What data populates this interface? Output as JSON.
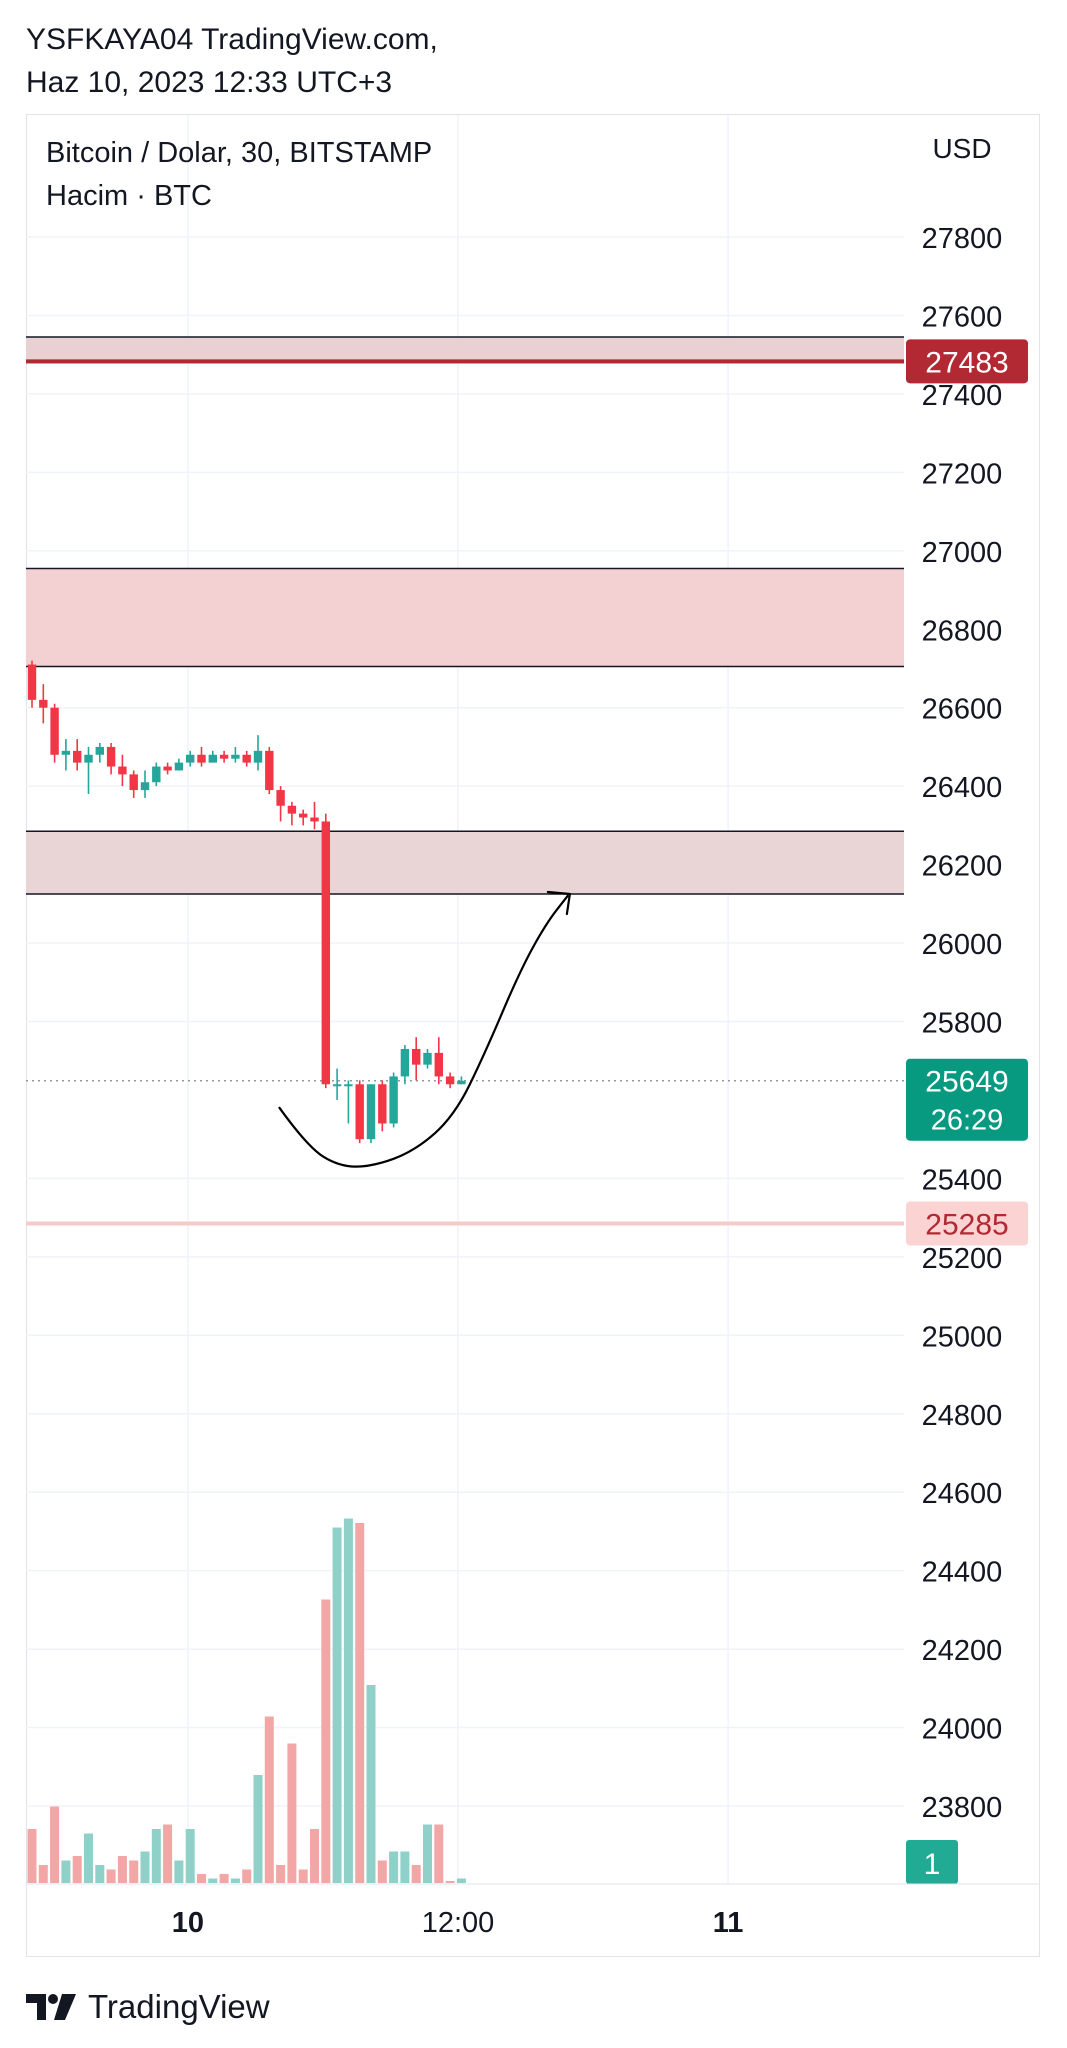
{
  "header": {
    "line1": "YSFKAYA04 TradingView.com,",
    "line2": "Haz 10, 2023 12:33 UTC+3"
  },
  "legend": {
    "symbol": "Bitcoin / Dolar, 30, BITSTAMP",
    "volume": "Hacim · BTC"
  },
  "currency": "USD",
  "brand": {
    "name": "TradingView",
    "logo_icon": "tradingview-logo-icon"
  },
  "chart_data": {
    "type": "candlestick",
    "ylim": [
      23600,
      27980
    ],
    "y_ticks": [
      27800,
      27600,
      27400,
      27200,
      27000,
      26800,
      26600,
      26400,
      26200,
      26000,
      25800,
      25400,
      25200,
      25000,
      24800,
      24600,
      24400,
      24200,
      24000,
      23800
    ],
    "x_ticks": [
      {
        "label": "10",
        "bar": 13.8,
        "bold": true
      },
      {
        "label": "12:00",
        "bar": 37.7,
        "bold": false
      },
      {
        "label": "11",
        "bar": 61.6,
        "bold": true
      }
    ],
    "grid": true,
    "colors": {
      "up": "#26a69a",
      "down": "#f23645",
      "vol_up": "#8fd0c8",
      "vol_down": "#f3a6a6"
    },
    "candles": [
      {
        "o": 26710,
        "h": 26720,
        "c": 26620,
        "l": 26600
      },
      {
        "o": 26620,
        "h": 26660,
        "c": 26600,
        "l": 26560
      },
      {
        "o": 26600,
        "h": 26610,
        "c": 26480,
        "l": 26460
      },
      {
        "o": 26480,
        "h": 26520,
        "c": 26490,
        "l": 26440
      },
      {
        "o": 26490,
        "h": 26520,
        "c": 26460,
        "l": 26440
      },
      {
        "o": 26460,
        "h": 26500,
        "c": 26480,
        "l": 26380
      },
      {
        "o": 26480,
        "h": 26510,
        "c": 26500,
        "l": 26460
      },
      {
        "o": 26500,
        "h": 26510,
        "c": 26450,
        "l": 26430
      },
      {
        "o": 26450,
        "h": 26480,
        "c": 26430,
        "l": 26400
      },
      {
        "o": 26430,
        "h": 26440,
        "c": 26390,
        "l": 26370
      },
      {
        "o": 26390,
        "h": 26440,
        "c": 26410,
        "l": 26370
      },
      {
        "o": 26410,
        "h": 26460,
        "c": 26450,
        "l": 26400
      },
      {
        "o": 26450,
        "h": 26460,
        "c": 26440,
        "l": 26430
      },
      {
        "o": 26440,
        "h": 26470,
        "c": 26460,
        "l": 26440
      },
      {
        "o": 26460,
        "h": 26490,
        "c": 26480,
        "l": 26450
      },
      {
        "o": 26480,
        "h": 26500,
        "c": 26460,
        "l": 26450
      },
      {
        "o": 26460,
        "h": 26490,
        "c": 26480,
        "l": 26460
      },
      {
        "o": 26480,
        "h": 26490,
        "c": 26470,
        "l": 26460
      },
      {
        "o": 26470,
        "h": 26500,
        "c": 26480,
        "l": 26460
      },
      {
        "o": 26480,
        "h": 26490,
        "c": 26460,
        "l": 26450
      },
      {
        "o": 26460,
        "h": 26530,
        "c": 26490,
        "l": 26440
      },
      {
        "o": 26490,
        "h": 26500,
        "c": 26390,
        "l": 26380
      },
      {
        "o": 26390,
        "h": 26400,
        "c": 26350,
        "l": 26310
      },
      {
        "o": 26350,
        "h": 26360,
        "c": 26330,
        "l": 26300
      },
      {
        "o": 26330,
        "h": 26340,
        "c": 26320,
        "l": 26300
      },
      {
        "o": 26320,
        "h": 26360,
        "c": 26310,
        "l": 26290
      },
      {
        "o": 26310,
        "h": 26330,
        "c": 25640,
        "l": 25630
      },
      {
        "o": 25640,
        "h": 25680,
        "c": 25640,
        "l": 25600
      },
      {
        "o": 25640,
        "h": 25650,
        "c": 25640,
        "l": 25540
      },
      {
        "o": 25640,
        "h": 25650,
        "c": 25500,
        "l": 25490
      },
      {
        "o": 25500,
        "h": 25640,
        "c": 25640,
        "l": 25490
      },
      {
        "o": 25640,
        "h": 25650,
        "c": 25540,
        "l": 25520
      },
      {
        "o": 25540,
        "h": 25670,
        "c": 25660,
        "l": 25530
      },
      {
        "o": 25660,
        "h": 25740,
        "c": 25730,
        "l": 25640
      },
      {
        "o": 25730,
        "h": 25760,
        "c": 25690,
        "l": 25650
      },
      {
        "o": 25690,
        "h": 25730,
        "c": 25720,
        "l": 25680
      },
      {
        "o": 25720,
        "h": 25760,
        "c": 25660,
        "l": 25640
      },
      {
        "o": 25660,
        "h": 25670,
        "c": 25640,
        "l": 25630
      },
      {
        "o": 25640,
        "h": 25660,
        "c": 25649,
        "l": 25640
      }
    ],
    "volume_rel": [
      0.12,
      0.04,
      0.17,
      0.05,
      0.06,
      0.11,
      0.04,
      0.03,
      0.06,
      0.05,
      0.07,
      0.12,
      0.13,
      0.05,
      0.12,
      0.02,
      0.01,
      0.02,
      0.01,
      0.03,
      0.24,
      0.37,
      0.04,
      0.31,
      0.03,
      0.12,
      0.63,
      0.79,
      0.81,
      0.8,
      0.44,
      0.05,
      0.07,
      0.07,
      0.04,
      0.13,
      0.13,
      0.0,
      0.01
    ],
    "zones": [
      {
        "top": 27545,
        "bottom": 27480,
        "fill": "#e9d0d2",
        "line": 27483,
        "line_color": "#b22833"
      },
      {
        "top": 26955,
        "bottom": 26705,
        "fill": "#f3d1d3"
      },
      {
        "top": 26285,
        "bottom": 26125,
        "fill": "#e9d4d6"
      }
    ],
    "level_line": {
      "value": 25285,
      "color": "#f7caca"
    },
    "current_line": {
      "value": 25649,
      "color": "#9598a1"
    },
    "price_labels": [
      {
        "text": "27483",
        "value": 27483,
        "bg": "#b22833",
        "color": "#ffffff"
      },
      {
        "text": "25649",
        "sub": "26:29",
        "value": 25649,
        "bg": "#089981",
        "color": "#ffffff"
      },
      {
        "text": "25285",
        "value": 25285,
        "bg": "#fbd3d3",
        "color": "#b22833"
      }
    ],
    "badge": {
      "text": "1",
      "bg": "#22ab94",
      "color": "#ffffff"
    },
    "annotation": {
      "curve_points": [
        [
          25580,
          21.9
        ],
        [
          25480,
          24.4
        ],
        [
          25430,
          27.2
        ],
        [
          25430,
          30.1
        ],
        [
          25470,
          33.9
        ],
        [
          25560,
          37.4
        ],
        [
          25720,
          40.1
        ],
        [
          25930,
          43.2
        ],
        [
          26050,
          45.5
        ],
        [
          26120,
          47.4
        ]
      ],
      "arrow_at": [
        26125,
        47.6
      ],
      "color": "#000000"
    }
  }
}
